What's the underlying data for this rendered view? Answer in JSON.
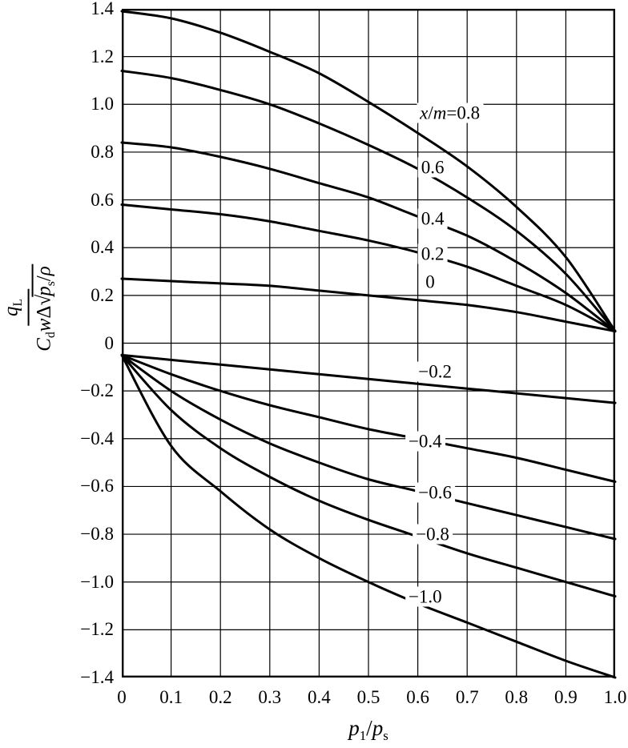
{
  "figure": {
    "background": "#ffffff",
    "line_color": "#000000"
  },
  "chart_data": {
    "type": "line",
    "title": "",
    "xlabel_text": "p1/ps",
    "ylabel_text": "qL / (Cd w Δ √(ps/ρ))",
    "xlabel_parts": [
      {
        "t": "p",
        "i": true
      },
      {
        "t": "1",
        "sub": true
      },
      {
        "t": "/"
      },
      {
        "t": "p",
        "i": true
      },
      {
        "t": "s",
        "sub": true
      }
    ],
    "ylabel": {
      "numerator_parts": [
        {
          "t": "q",
          "i": true
        },
        {
          "t": "L",
          "sub": true
        }
      ],
      "denominator_parts": [
        {
          "t": "C",
          "i": true
        },
        {
          "t": "d",
          "sub": true
        },
        {
          "t": "w",
          "i": true
        },
        {
          "t": "Δ"
        },
        {
          "t": "√"
        },
        {
          "rad": true,
          "parts": [
            {
              "t": "p",
              "i": true
            },
            {
              "t": "s",
              "sub": true
            },
            {
              "t": "/"
            },
            {
              "t": "ρ",
              "i": true
            }
          ]
        }
      ]
    },
    "xlim": [
      0,
      1.0
    ],
    "ylim": [
      -1.4,
      1.4
    ],
    "grid": true,
    "x_ticks": [
      0,
      0.1,
      0.2,
      0.3,
      0.4,
      0.5,
      0.6,
      0.7,
      0.8,
      0.9,
      1.0
    ],
    "x_tick_labels": [
      "0",
      "0.1",
      "0.2",
      "0.3",
      "0.4",
      "0.5",
      "0.6",
      "0.7",
      "0.8",
      "0.9",
      "1.0"
    ],
    "y_ticks": [
      1.4,
      1.2,
      1.0,
      0.8,
      0.6,
      0.4,
      0.2,
      0,
      -0.2,
      -0.4,
      -0.6,
      -0.8,
      -1.0,
      -1.2,
      -1.4
    ],
    "y_tick_labels": [
      "1.4",
      "1.2",
      "1.0",
      "0.8",
      "0.6",
      "0.4",
      "0.2",
      "0",
      "−0.2",
      "−0.4",
      "−0.6",
      "−0.8",
      "−1.0",
      "−1.2",
      "−1.4"
    ],
    "x": [
      0,
      0.1,
      0.2,
      0.3,
      0.4,
      0.5,
      0.6,
      0.7,
      0.8,
      0.9,
      1.0
    ],
    "series": [
      {
        "name": "x/m=0.8",
        "values": [
          1.39,
          1.36,
          1.3,
          1.22,
          1.13,
          1.01,
          0.88,
          0.74,
          0.57,
          0.36,
          0.05
        ],
        "label": {
          "text": "x/m=0.8",
          "x": 0.665,
          "y": 0.965,
          "parts": [
            {
              "t": "x",
              "i": true
            },
            {
              "t": "/"
            },
            {
              "t": "m",
              "i": true
            },
            {
              "t": "=0.8"
            }
          ]
        }
      },
      {
        "name": "x/m=0.6",
        "values": [
          1.14,
          1.11,
          1.06,
          1.0,
          0.92,
          0.83,
          0.73,
          0.61,
          0.47,
          0.29,
          0.05
        ],
        "label": {
          "text": "0.6",
          "x": 0.63,
          "y": 0.735,
          "parts": [
            {
              "t": "0.6"
            }
          ]
        }
      },
      {
        "name": "x/m=0.4",
        "values": [
          0.84,
          0.82,
          0.78,
          0.73,
          0.67,
          0.61,
          0.53,
          0.45,
          0.34,
          0.21,
          0.05
        ],
        "label": {
          "text": "0.4",
          "x": 0.63,
          "y": 0.52,
          "parts": [
            {
              "t": "0.4"
            }
          ]
        }
      },
      {
        "name": "x/m=0.2",
        "values": [
          0.58,
          0.56,
          0.54,
          0.51,
          0.47,
          0.43,
          0.38,
          0.32,
          0.24,
          0.16,
          0.05
        ],
        "label": {
          "text": "0.2",
          "x": 0.63,
          "y": 0.375,
          "parts": [
            {
              "t": "0.2"
            }
          ]
        }
      },
      {
        "name": "x/m=0",
        "values": [
          0.27,
          0.26,
          0.25,
          0.24,
          0.22,
          0.2,
          0.18,
          0.16,
          0.13,
          0.09,
          0.05
        ],
        "label": {
          "text": "0",
          "x": 0.625,
          "y": 0.255,
          "parts": [
            {
              "t": "0"
            }
          ]
        }
      },
      {
        "name": "x/m=-0.2",
        "values": [
          -0.05,
          -0.07,
          -0.09,
          -0.11,
          -0.13,
          -0.15,
          -0.17,
          -0.19,
          -0.21,
          -0.23,
          -0.25
        ],
        "label": {
          "text": "−0.2",
          "x": 0.635,
          "y": -0.12,
          "parts": [
            {
              "t": "−0.2"
            }
          ]
        }
      },
      {
        "name": "x/m=-0.4",
        "values": [
          -0.05,
          -0.13,
          -0.2,
          -0.26,
          -0.31,
          -0.36,
          -0.4,
          -0.44,
          -0.48,
          -0.53,
          -0.58
        ],
        "label": {
          "text": "−0.4",
          "x": 0.615,
          "y": -0.41,
          "parts": [
            {
              "t": "−0.4"
            }
          ]
        }
      },
      {
        "name": "x/m=-0.6",
        "values": [
          -0.05,
          -0.2,
          -0.32,
          -0.42,
          -0.5,
          -0.57,
          -0.62,
          -0.67,
          -0.72,
          -0.77,
          -0.82
        ],
        "label": {
          "text": "−0.6",
          "x": 0.635,
          "y": -0.625,
          "parts": [
            {
              "t": "−0.6"
            }
          ]
        }
      },
      {
        "name": "x/m=-0.8",
        "values": [
          -0.05,
          -0.28,
          -0.44,
          -0.56,
          -0.66,
          -0.74,
          -0.81,
          -0.88,
          -0.94,
          -1.0,
          -1.06
        ],
        "label": {
          "text": "−0.8",
          "x": 0.63,
          "y": -0.8,
          "parts": [
            {
              "t": "−0.8"
            }
          ]
        }
      },
      {
        "name": "x/m=-1.0",
        "values": [
          -0.05,
          -0.43,
          -0.62,
          -0.78,
          -0.9,
          -1.0,
          -1.09,
          -1.17,
          -1.25,
          -1.33,
          -1.4
        ],
        "label": {
          "text": "−1.0",
          "x": 0.615,
          "y": -1.06,
          "parts": [
            {
              "t": "−1.0"
            }
          ]
        }
      }
    ]
  }
}
